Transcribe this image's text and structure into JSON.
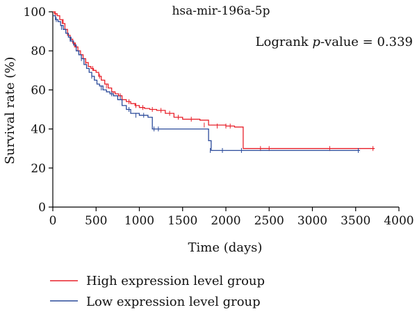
{
  "chart_data": {
    "type": "line",
    "title": "hsa-mir-196a-5p",
    "annotation": {
      "prefix": "Logrank ",
      "italic": "p",
      "suffix": "-value = 0.339"
    },
    "xlabel": "Time (days)",
    "ylabel": "Survival rate (%)",
    "xlim": [
      0,
      4000
    ],
    "ylim": [
      0,
      100
    ],
    "xticks": [
      0,
      500,
      1000,
      1500,
      2000,
      2500,
      3000,
      3500,
      4000
    ],
    "yticks": [
      0,
      20,
      40,
      60,
      80,
      100
    ],
    "grid": false,
    "legend_position": "bottom",
    "series": [
      {
        "name": "High expression level group",
        "color": "#e8202a",
        "x": [
          0,
          20,
          50,
          80,
          110,
          140,
          170,
          200,
          230,
          260,
          290,
          320,
          350,
          380,
          410,
          440,
          470,
          500,
          530,
          560,
          600,
          640,
          680,
          720,
          760,
          800,
          850,
          900,
          950,
          1000,
          1060,
          1120,
          1200,
          1300,
          1400,
          1500,
          1700,
          1800,
          2000,
          2100,
          2200,
          3720
        ],
        "y": [
          100,
          99,
          98,
          96,
          94,
          91,
          88,
          86,
          84,
          82,
          80,
          78,
          76,
          74,
          72,
          71,
          70,
          69,
          67,
          65,
          63,
          61,
          59,
          58,
          57,
          55,
          54,
          53,
          52,
          51,
          50.5,
          50,
          49.5,
          48,
          46,
          45,
          44.5,
          42,
          41.5,
          41,
          30,
          30
        ],
        "censor_x": [
          30,
          120,
          250,
          380,
          460,
          540,
          620,
          700,
          780,
          880,
          960,
          1040,
          1150,
          1250,
          1350,
          1450,
          1600,
          1750,
          1900,
          2000,
          2050,
          2400,
          2500,
          3200,
          3700
        ],
        "censor_y": [
          99,
          95,
          83,
          74,
          71,
          67,
          62,
          58,
          57,
          54,
          52,
          51,
          50,
          49.5,
          48,
          46,
          45,
          42,
          41.5,
          41.5,
          41.5,
          30,
          30,
          30,
          30
        ]
      },
      {
        "name": "Low expression level group",
        "color": "#2a4a9a",
        "x": [
          0,
          30,
          60,
          90,
          120,
          150,
          180,
          210,
          240,
          270,
          300,
          330,
          360,
          390,
          420,
          450,
          480,
          510,
          540,
          580,
          620,
          660,
          700,
          750,
          800,
          850,
          900,
          1000,
          1100,
          1150,
          1200,
          1750,
          1800,
          1830,
          3550
        ],
        "y": [
          98,
          96,
          95,
          93,
          91,
          89,
          87,
          85,
          83,
          80,
          78,
          76,
          73,
          71,
          69,
          67,
          65,
          63,
          62,
          60,
          59,
          58,
          57,
          55,
          52,
          50,
          48,
          47,
          46,
          40,
          40,
          40,
          34,
          29,
          29
        ],
        "censor_x": [
          40,
          100,
          200,
          330,
          450,
          560,
          680,
          780,
          880,
          960,
          1050,
          1170,
          1220,
          1820,
          1960,
          2180,
          3530
        ],
        "censor_y": [
          96,
          92,
          86,
          76,
          67,
          61,
          58,
          56,
          50,
          47,
          47,
          40,
          40,
          29,
          29,
          29,
          29
        ]
      }
    ]
  }
}
